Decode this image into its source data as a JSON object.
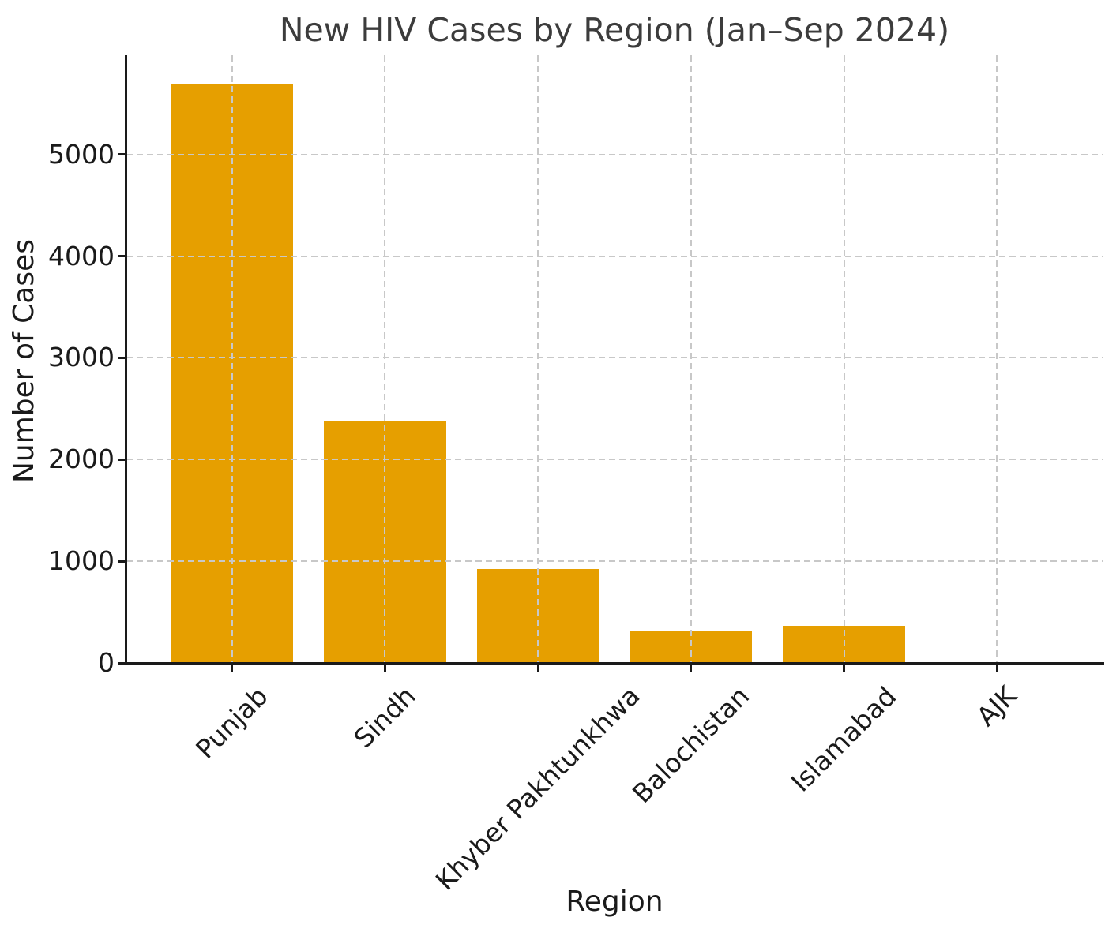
{
  "chart_data": {
    "type": "bar",
    "title": "New HIV Cases by Region (Jan–Sep 2024)",
    "xlabel": "Region",
    "ylabel": "Number of Cases",
    "categories": [
      "Punjab",
      "Sindh",
      "Khyber Pakhtunkhwa",
      "Balochistan",
      "Islamabad",
      "AJK"
    ],
    "values": [
      5691,
      2383,
      921,
      316,
      366,
      0
    ],
    "yticks": [
      0,
      1000,
      2000,
      3000,
      4000,
      5000
    ],
    "ylim": [
      0,
      5975
    ],
    "bar_color": "#E69F00",
    "grid": true,
    "grid_style": "dashed",
    "grid_color": "#c8c8c8",
    "axis_color": "#1a1a1a",
    "xtick_rotation": 45,
    "legend_position": "none"
  }
}
